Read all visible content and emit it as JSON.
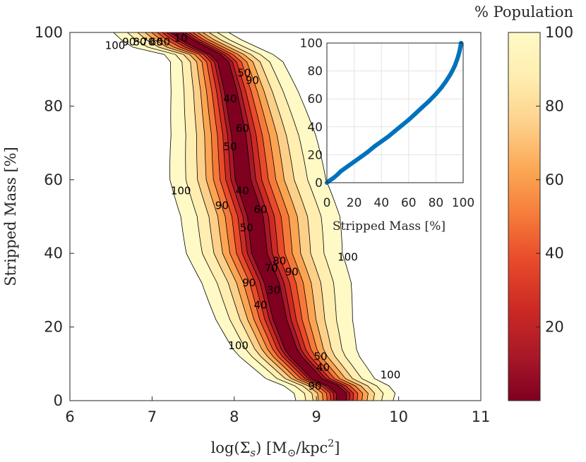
{
  "chart_data": [
    {
      "type": "contour",
      "xlabel": "log(Σ_s) [M_⊙/kpc²]",
      "xlabel_parts": {
        "a": "log(Σ",
        "sub": "s",
        "b": ") [M",
        "sun": "⊙",
        "c": "/kpc",
        "sup": "2",
        "d": "]"
      },
      "ylabel": "Stripped Mass [%]",
      "xlim": [
        6,
        11
      ],
      "ylim": [
        0,
        100
      ],
      "xticks": [
        6,
        7,
        8,
        9,
        10,
        11
      ],
      "yticks": [
        0,
        20,
        40,
        60,
        80,
        100
      ],
      "colorbar": {
        "title": "% Population",
        "ticks": [
          20,
          40,
          60,
          80,
          100
        ],
        "range": [
          0,
          100
        ],
        "colors": [
          "#800020",
          "#a81828",
          "#cc2a24",
          "#e84a2a",
          "#f57a3a",
          "#fba552",
          "#fdd08a",
          "#ffeeb0",
          "#fff9c6"
        ]
      },
      "contour_levels": [
        10,
        20,
        30,
        40,
        50,
        60,
        70,
        80,
        90,
        100
      ],
      "ridge": [
        {
          "x": 7.3,
          "y": 99.5
        },
        {
          "x": 7.85,
          "y": 93
        },
        {
          "x": 7.95,
          "y": 84
        },
        {
          "x": 8.05,
          "y": 72
        },
        {
          "x": 8.1,
          "y": 60
        },
        {
          "x": 8.25,
          "y": 50
        },
        {
          "x": 8.3,
          "y": 40
        },
        {
          "x": 8.45,
          "y": 32
        },
        {
          "x": 8.55,
          "y": 22
        },
        {
          "x": 8.7,
          "y": 13
        },
        {
          "x": 9.0,
          "y": 6
        },
        {
          "x": 9.3,
          "y": 3
        }
      ],
      "contour_labels": [
        {
          "text": "100",
          "x": 6.55,
          "y": 95.5
        },
        {
          "text": "90",
          "x": 6.72,
          "y": 96.5
        },
        {
          "text": "80",
          "x": 6.85,
          "y": 96.5
        },
        {
          "text": "70",
          "x": 6.95,
          "y": 96.5
        },
        {
          "text": "60",
          "x": 7.05,
          "y": 96.5
        },
        {
          "text": "50",
          "x": 7.14,
          "y": 96.5
        },
        {
          "text": "10",
          "x": 7.35,
          "y": 97.5
        },
        {
          "text": "50",
          "x": 8.12,
          "y": 88
        },
        {
          "text": "90",
          "x": 8.22,
          "y": 86
        },
        {
          "text": "40",
          "x": 7.95,
          "y": 81
        },
        {
          "text": "60",
          "x": 8.1,
          "y": 73
        },
        {
          "text": "50",
          "x": 7.95,
          "y": 68
        },
        {
          "text": "100",
          "x": 7.35,
          "y": 56
        },
        {
          "text": "90",
          "x": 7.85,
          "y": 52
        },
        {
          "text": "40",
          "x": 8.1,
          "y": 56
        },
        {
          "text": "60",
          "x": 8.32,
          "y": 51
        },
        {
          "text": "50",
          "x": 8.15,
          "y": 46
        },
        {
          "text": "80",
          "x": 8.55,
          "y": 37
        },
        {
          "text": "90",
          "x": 8.7,
          "y": 34
        },
        {
          "text": "70",
          "x": 8.45,
          "y": 35
        },
        {
          "text": "90",
          "x": 8.18,
          "y": 31
        },
        {
          "text": "30",
          "x": 8.48,
          "y": 29
        },
        {
          "text": "40",
          "x": 8.32,
          "y": 25
        },
        {
          "text": "100",
          "x": 8.05,
          "y": 14
        },
        {
          "text": "50",
          "x": 9.05,
          "y": 11
        },
        {
          "text": "40",
          "x": 9.08,
          "y": 8
        },
        {
          "text": "90",
          "x": 8.98,
          "y": 3
        },
        {
          "text": "100",
          "x": 9.9,
          "y": 6
        },
        {
          "text": "100",
          "x": 9.38,
          "y": 38
        }
      ]
    },
    {
      "type": "scatter",
      "role": "inset",
      "xlabel": "Stripped Mass [%]",
      "xlim": [
        0,
        100
      ],
      "ylim": [
        0,
        100
      ],
      "xticks": [
        0,
        20,
        40,
        60,
        80,
        100
      ],
      "yticks": [
        0,
        20,
        40,
        60,
        80,
        100
      ],
      "grid": true,
      "marker_color": "#0072bd",
      "points": [
        [
          0,
          0
        ],
        [
          2,
          1.5
        ],
        [
          5,
          3.5
        ],
        [
          8,
          6
        ],
        [
          10,
          8
        ],
        [
          15,
          11.5
        ],
        [
          20,
          15
        ],
        [
          25,
          18.5
        ],
        [
          30,
          22
        ],
        [
          35,
          26
        ],
        [
          40,
          29.5
        ],
        [
          45,
          33
        ],
        [
          50,
          37
        ],
        [
          55,
          41
        ],
        [
          60,
          45
        ],
        [
          65,
          49.5
        ],
        [
          70,
          54
        ],
        [
          75,
          58.5
        ],
        [
          80,
          63.5
        ],
        [
          84,
          68
        ],
        [
          87,
          72
        ],
        [
          90,
          76.5
        ],
        [
          92,
          80
        ],
        [
          94,
          84
        ],
        [
          95.5,
          88
        ],
        [
          96.5,
          91
        ],
        [
          97.3,
          94
        ],
        [
          97.8,
          96.5
        ],
        [
          98.2,
          98.5
        ],
        [
          98.5,
          100
        ]
      ]
    }
  ]
}
